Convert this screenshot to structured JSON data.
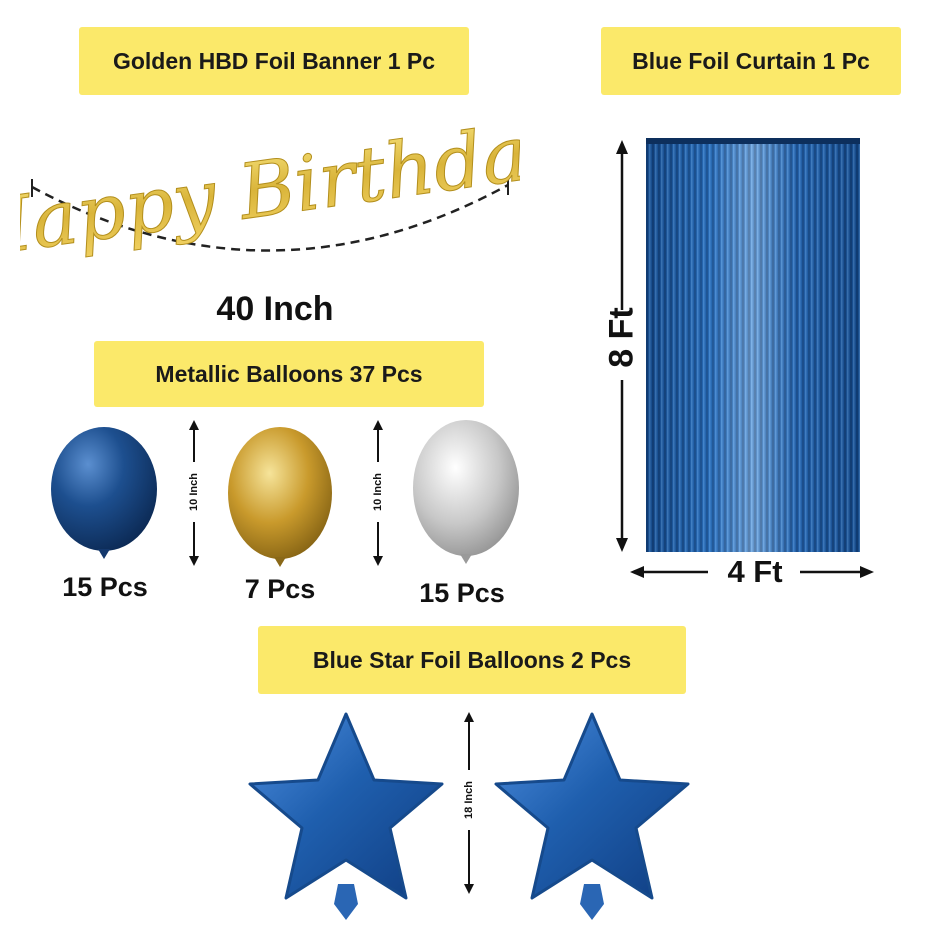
{
  "labels": {
    "banner": "Golden HBD Foil Banner 1 Pc",
    "curtain": "Blue Foil Curtain 1 Pc",
    "metallic": "Metallic Balloons 37 Pcs",
    "star": "Blue Star Foil Balloons 2 Pcs"
  },
  "banner": {
    "script_text": "Happy Birthday",
    "length": "40 Inch"
  },
  "curtain": {
    "height": "8 Ft",
    "width": "4 Ft"
  },
  "balloons": {
    "size_label": "10 Inch",
    "blue_count": "15 Pcs",
    "gold_count": "7 Pcs",
    "silver_count": "15 Pcs"
  },
  "stars": {
    "size_label": "18 Inch"
  },
  "colors": {
    "label_bg": "#fbe96a",
    "gold": "#d9b43a",
    "navy": "#1d4f8f",
    "star_blue": "#1f5fae",
    "curtain_blue": "#1e5aa0"
  }
}
